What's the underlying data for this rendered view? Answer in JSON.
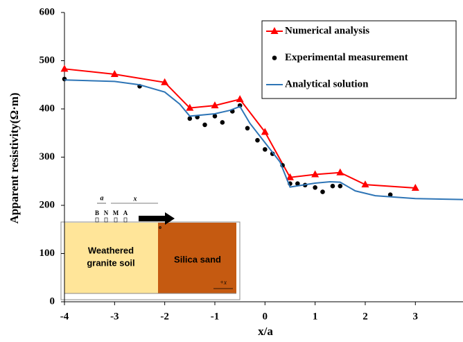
{
  "chart_data": {
    "type": "line",
    "xlabel": "x/a",
    "ylabel": "Apparent resistivity(Ω·m)",
    "xlim": [
      -4,
      3.95
    ],
    "ylim": [
      0,
      600
    ],
    "xticks": [
      -4,
      -3,
      -2,
      -1,
      0,
      1,
      2,
      3
    ],
    "yticks": [
      0,
      100,
      200,
      300,
      400,
      500,
      600
    ],
    "grid": false,
    "legend": "upper right",
    "series": [
      {
        "name": "Numerical analysis",
        "color": "#ff0000",
        "marker": "triangle",
        "line": true,
        "x": [
          -4,
          -3,
          -2,
          -1.5,
          -1,
          -0.5,
          0,
          0.5,
          1,
          1.5,
          2,
          3
        ],
        "values": [
          483,
          472,
          455,
          402,
          407,
          420,
          352,
          258,
          264,
          268,
          243,
          236
        ]
      },
      {
        "name": "Experimental measurement",
        "color": "#000000",
        "marker": "circle",
        "line": false,
        "x": [
          -4,
          -2.5,
          -1.5,
          -1.35,
          -1.2,
          -1,
          -0.85,
          -0.65,
          -0.5,
          -0.35,
          -0.15,
          0,
          0.15,
          0.35,
          0.5,
          0.65,
          0.8,
          1,
          1.15,
          1.35,
          1.5,
          2.5
        ],
        "values": [
          462,
          447,
          380,
          383,
          367,
          385,
          372,
          395,
          407,
          360,
          335,
          316,
          307,
          283,
          245,
          245,
          242,
          237,
          228,
          240,
          240,
          222
        ]
      },
      {
        "name": "Analytical solution",
        "color": "#2e75b6",
        "marker": "none",
        "line": true,
        "x": [
          -4,
          -3,
          -2.5,
          -2,
          -1.7,
          -1.5,
          -1,
          -0.7,
          -0.5,
          -0.3,
          0,
          0.3,
          0.5,
          1,
          1.3,
          1.5,
          1.8,
          2.2,
          3,
          3.95
        ],
        "values": [
          460,
          457,
          450,
          435,
          410,
          385,
          390,
          397,
          405,
          370,
          330,
          290,
          238,
          246,
          249,
          248,
          230,
          220,
          214,
          212
        ]
      }
    ]
  },
  "inset": {
    "left_label": [
      "Weathered",
      "granite soil"
    ],
    "right_label": "Silica sand",
    "electrodes": [
      "B",
      "N",
      "M",
      "A"
    ],
    "spacing": "a",
    "distance": "x",
    "origin": "o",
    "direction": "+x"
  }
}
